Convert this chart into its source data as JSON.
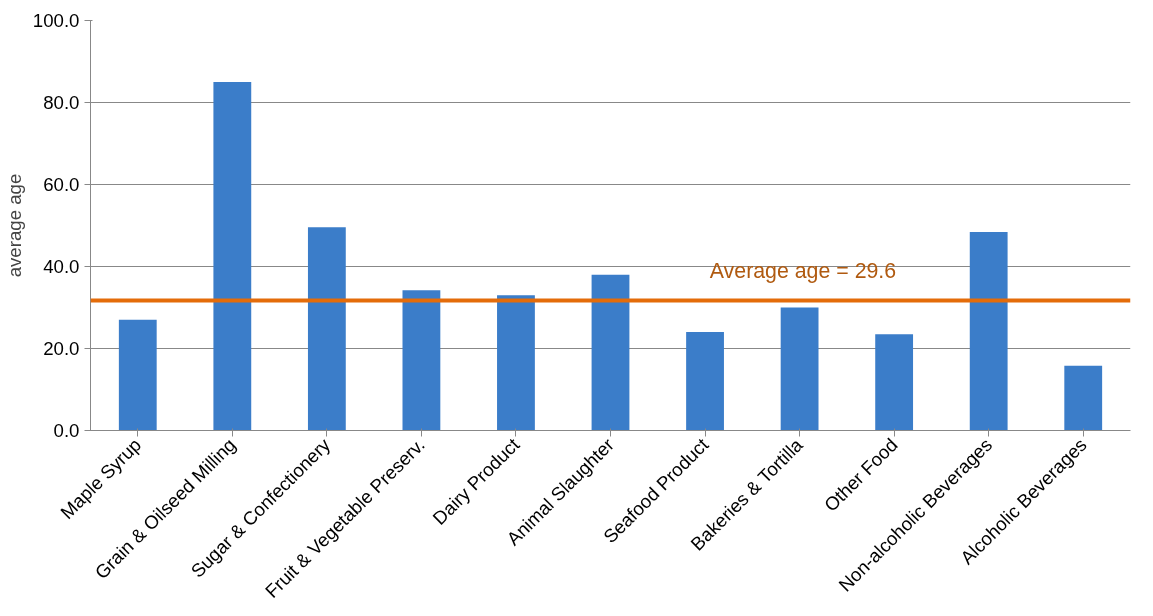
{
  "chart_data": {
    "type": "bar",
    "ylabel": "average age",
    "categories": [
      "Maple Syrup",
      "Grain & Oilseed Milling",
      "Sugar & Confectionery",
      "Fruit & Vegetable Preserv.",
      "Dairy Product",
      "Animal Slaughter",
      "Seafood Product",
      "Bakeries & Tortilla",
      "Other Food",
      "Non-alcoholic Beverages",
      "Alcoholic Beverages"
    ],
    "values": [
      27.0,
      85.0,
      49.6,
      34.2,
      33.0,
      38.0,
      24.0,
      30.0,
      23.5,
      48.4,
      15.8
    ],
    "color": "#3b7dc9",
    "ylim": [
      0,
      100
    ],
    "yticks": [
      {
        "value": 0,
        "label": "0.0"
      },
      {
        "value": 20,
        "label": "20.0"
      },
      {
        "value": 40,
        "label": "40.0"
      },
      {
        "value": 60,
        "label": "60.0"
      },
      {
        "value": 80,
        "label": "80.0"
      },
      {
        "value": 100,
        "label": "100.0"
      }
    ],
    "grid": "y",
    "annotations": [
      "Average age = 29.6"
    ],
    "ref_lines": [
      {
        "axis": "y",
        "value": 31.7,
        "color": "#e46c0a"
      }
    ]
  }
}
